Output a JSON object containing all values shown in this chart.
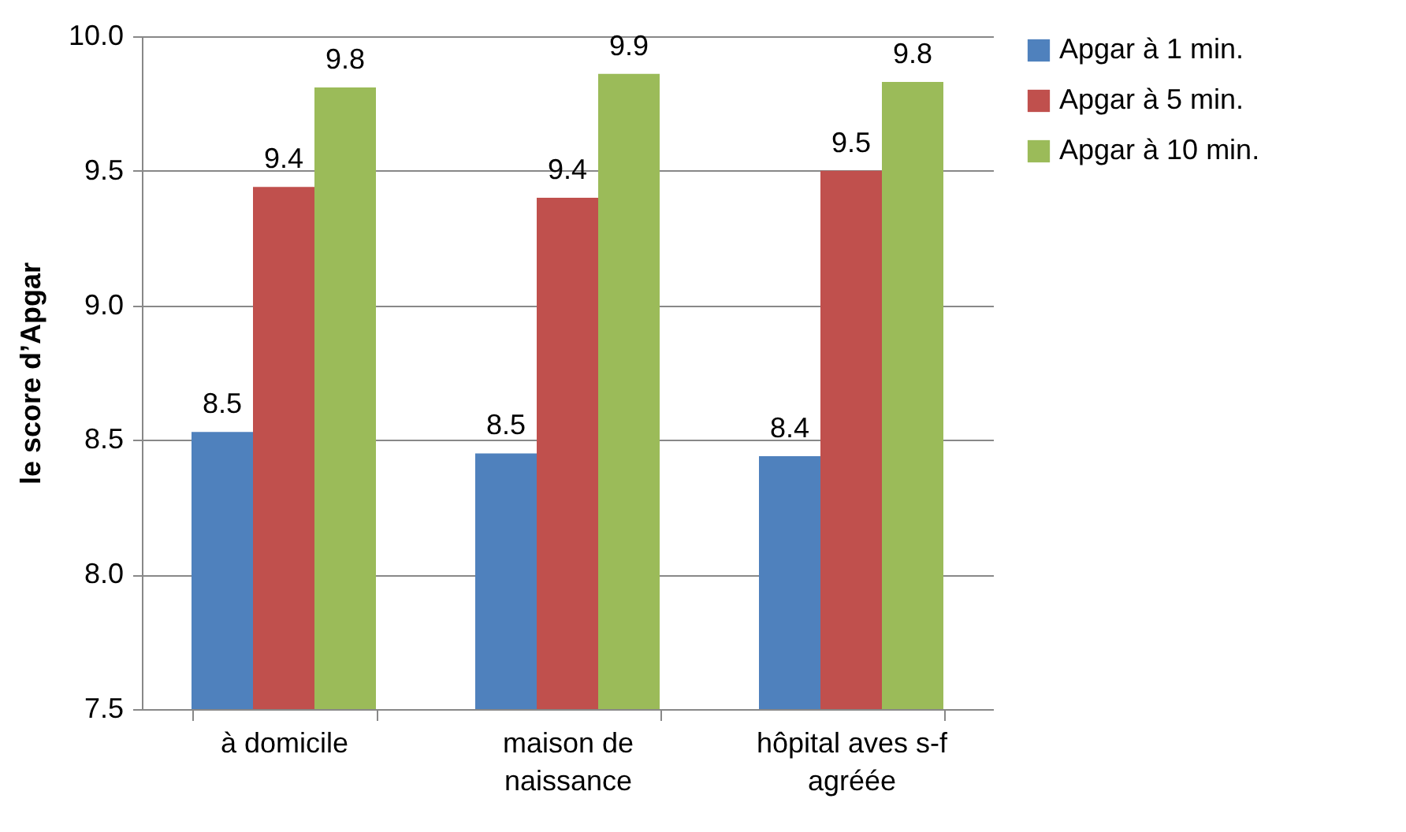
{
  "chart_data": {
    "type": "bar",
    "ylabel": "le score d’Apgar",
    "categories": [
      "à domicile",
      "maison de naissance",
      "hôpital aves s-f agréée"
    ],
    "series": [
      {
        "name": "Apgar à 1 min.",
        "color": "#4f81bd",
        "values": [
          8.53,
          8.45,
          8.44
        ],
        "value_labels": [
          "8.5",
          "8.5",
          "8.4"
        ]
      },
      {
        "name": "Apgar à 5 min.",
        "color": "#c0504d",
        "values": [
          9.44,
          9.4,
          9.5
        ],
        "value_labels": [
          "9.4",
          "9.4",
          "9.5"
        ]
      },
      {
        "name": "Apgar à 10 min.",
        "color": "#9bbb59",
        "values": [
          9.81,
          9.86,
          9.83
        ],
        "value_labels": [
          "9.8",
          "9.9",
          "9.8"
        ]
      }
    ],
    "ylim": [
      7.5,
      10.0
    ],
    "yticks": [
      {
        "value": 7.5,
        "label": "7.5"
      },
      {
        "value": 8.0,
        "label": "8.0"
      },
      {
        "value": 8.5,
        "label": "8.5"
      },
      {
        "value": 9.0,
        "label": "9.0"
      },
      {
        "value": 9.5,
        "label": "9.5"
      },
      {
        "value": 10.0,
        "label": "10.0"
      }
    ],
    "grid": "y",
    "legend": "right"
  }
}
